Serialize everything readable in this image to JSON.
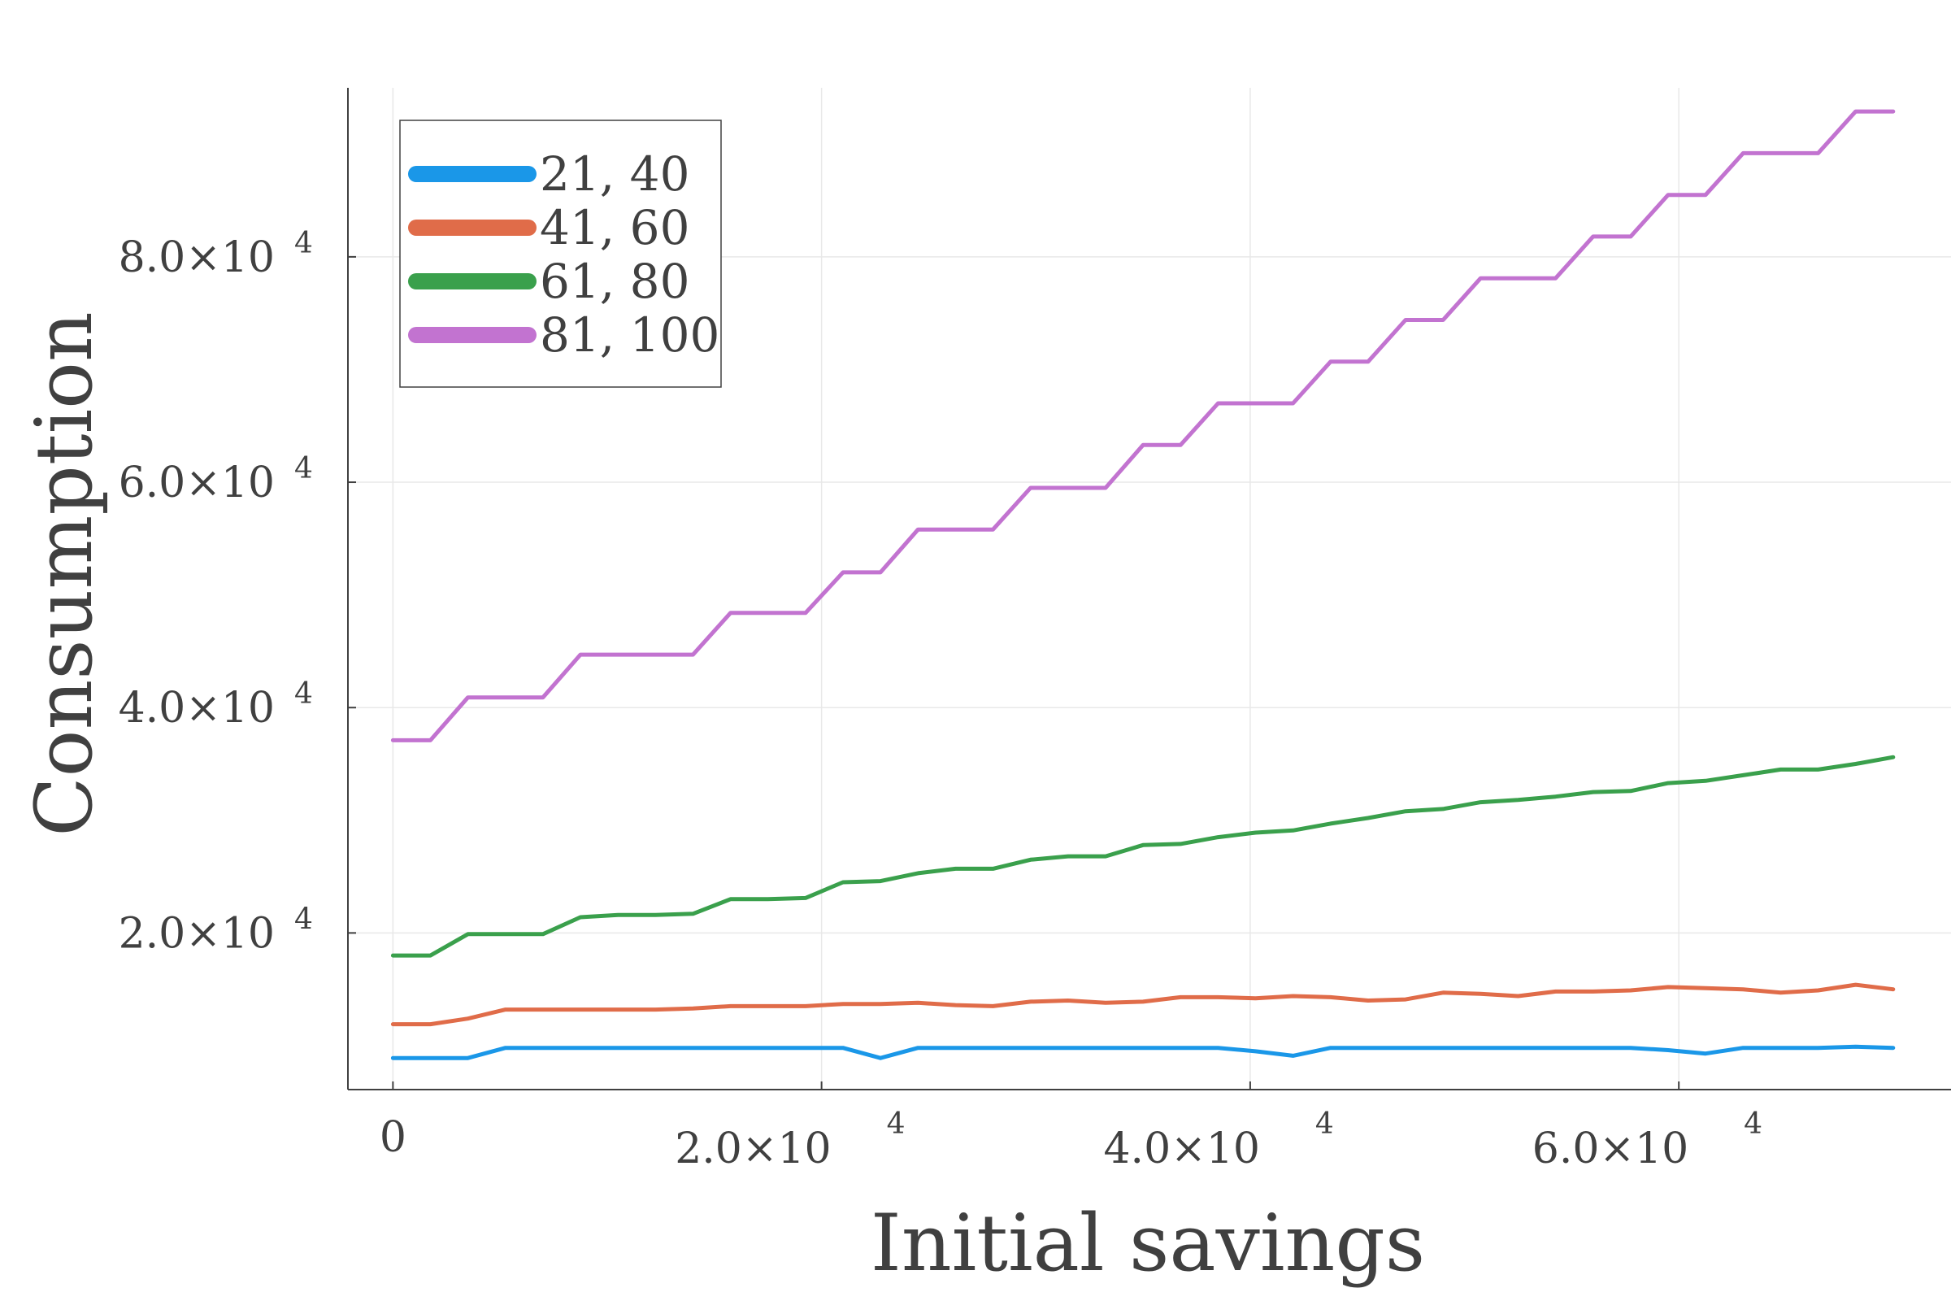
{
  "chart_data": {
    "type": "line",
    "title": "",
    "xlabel": "Initial savings",
    "ylabel": "Consumption",
    "xlim": [
      -2100,
      72700
    ],
    "ylim": [
      6100,
      95000
    ],
    "grid": true,
    "legend_position": "top-left",
    "x_ticks": [
      {
        "value": 0,
        "mantissa": "0",
        "exp": ""
      },
      {
        "value": 20000,
        "mantissa": "2.0×10",
        "exp": "4"
      },
      {
        "value": 40000,
        "mantissa": "4.0×10",
        "exp": "4"
      },
      {
        "value": 60000,
        "mantissa": "6.0×10",
        "exp": "4"
      }
    ],
    "y_ticks": [
      {
        "value": 20000,
        "mantissa": "2.0×10",
        "exp": "4"
      },
      {
        "value": 40000,
        "mantissa": "4.0×10",
        "exp": "4"
      },
      {
        "value": 60000,
        "mantissa": "6.0×10",
        "exp": "4"
      },
      {
        "value": 80000,
        "mantissa": "8.0×10",
        "exp": "4"
      }
    ],
    "x": [
      0,
      1750,
      3500,
      5250,
      7000,
      8750,
      10500,
      12250,
      14000,
      15750,
      17500,
      19250,
      21000,
      22750,
      24500,
      26250,
      28000,
      29750,
      31500,
      33250,
      35000,
      36750,
      38500,
      40250,
      42000,
      43750,
      45500,
      47250,
      49000,
      50750,
      52500,
      54250,
      56000,
      57750,
      59500,
      61250,
      63000,
      64750,
      66500,
      68250,
      70000
    ],
    "series": [
      {
        "name": "21, 40",
        "color": "#1a97e8",
        "values": [
          8900,
          8900,
          8900,
          9800,
          9800,
          9800,
          9800,
          9800,
          9800,
          9800,
          9800,
          9800,
          9800,
          8900,
          9800,
          9800,
          9800,
          9800,
          9800,
          9800,
          9800,
          9800,
          9800,
          9500,
          9100,
          9800,
          9800,
          9800,
          9800,
          9800,
          9800,
          9800,
          9800,
          9800,
          9600,
          9300,
          9800,
          9800,
          9800,
          9900,
          9800
        ]
      },
      {
        "name": "41, 60",
        "color": "#e06c49",
        "values": [
          11900,
          11900,
          12400,
          13200,
          13200,
          13200,
          13200,
          13200,
          13300,
          13500,
          13500,
          13500,
          13700,
          13700,
          13800,
          13600,
          13500,
          13900,
          14000,
          13800,
          13900,
          14300,
          14300,
          14200,
          14400,
          14300,
          14000,
          14100,
          14700,
          14600,
          14400,
          14800,
          14800,
          14900,
          15200,
          15100,
          15000,
          14700,
          14900,
          15400,
          15000
        ]
      },
      {
        "name": "61, 80",
        "color": "#3aa04c",
        "values": [
          18000,
          18000,
          19900,
          19900,
          19900,
          21400,
          21600,
          21600,
          21700,
          23000,
          23000,
          23100,
          24500,
          24600,
          25300,
          25700,
          25700,
          26500,
          26800,
          26800,
          27800,
          27900,
          28500,
          28900,
          29100,
          29700,
          30200,
          30800,
          31000,
          31600,
          31800,
          32100,
          32500,
          32600,
          33300,
          33500,
          34000,
          34500,
          34500,
          35000,
          35600
        ]
      },
      {
        "name": "81, 100",
        "color": "#c273d0",
        "values": [
          37100,
          37100,
          40900,
          40900,
          40900,
          44700,
          44700,
          44700,
          44700,
          48400,
          48400,
          48400,
          52000,
          52000,
          55800,
          55800,
          55800,
          59500,
          59500,
          59500,
          63300,
          63300,
          67000,
          67000,
          67000,
          70700,
          70700,
          74400,
          74400,
          78100,
          78100,
          78100,
          81800,
          81800,
          85500,
          85500,
          89200,
          89200,
          89200,
          92900,
          92900
        ]
      }
    ]
  }
}
